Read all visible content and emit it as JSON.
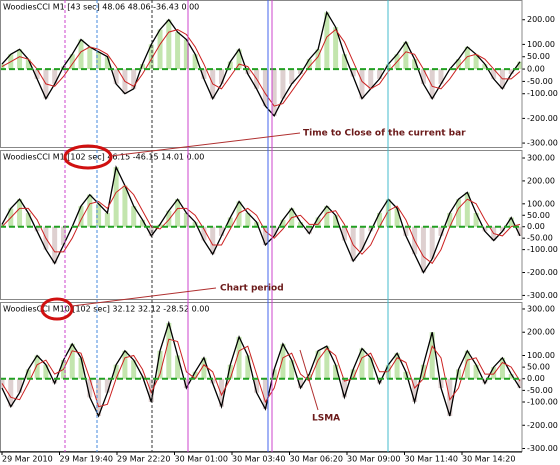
{
  "chart_data": [
    {
      "type": "line",
      "title": "WoodiesCCI M1 [43 sec] 48.06 48.06 -36.43 0.00",
      "ylim": [
        -320,
        280
      ],
      "yticks": [
        {
          "value": 200,
          "label": "200.00"
        },
        {
          "value": 100,
          "label": "100.00"
        },
        {
          "value": 50,
          "label": "50.00"
        },
        {
          "value": 0,
          "label": "0.00"
        },
        {
          "value": -50,
          "label": "-50.00"
        },
        {
          "value": -100,
          "label": "-100.00"
        },
        {
          "value": -200,
          "label": "-200.00"
        },
        {
          "value": -300,
          "label": "-300.00"
        }
      ],
      "series": [
        {
          "color": "#000000",
          "values": [
            20,
            60,
            80,
            40,
            -40,
            -120,
            -60,
            10,
            60,
            120,
            90,
            70,
            50,
            -60,
            -100,
            -80,
            20,
            100,
            160,
            200,
            150,
            120,
            60,
            -40,
            -120,
            -60,
            30,
            80,
            -20,
            -80,
            -150,
            -190,
            -120,
            -60,
            -20,
            40,
            80,
            230,
            170,
            60,
            -30,
            -120,
            -80,
            -40,
            20,
            60,
            110,
            40,
            -60,
            -120,
            -60,
            0,
            40,
            90,
            60,
            20,
            -40,
            -80,
            -20,
            30
          ]
        },
        {
          "color": "#cc2222",
          "values": [
            10,
            30,
            50,
            40,
            0,
            -60,
            -70,
            -30,
            20,
            70,
            90,
            80,
            60,
            10,
            -50,
            -70,
            -20,
            40,
            100,
            150,
            160,
            140,
            90,
            20,
            -60,
            -80,
            -30,
            20,
            10,
            -40,
            -100,
            -150,
            -140,
            -90,
            -40,
            10,
            50,
            130,
            160,
            110,
            30,
            -50,
            -80,
            -60,
            -10,
            30,
            70,
            60,
            0,
            -70,
            -80,
            -40,
            10,
            50,
            60,
            40,
            0,
            -40,
            -40,
            -10
          ]
        }
      ],
      "annotations": [
        "Time to Close of the current bar"
      ]
    },
    {
      "type": "line",
      "title": "WoodiesCCI M1 [102 sec] 46.15 -46.15 14.01 0.00",
      "ylim": [
        -320,
        335
      ],
      "yticks": [
        {
          "value": 300,
          "label": "300.00"
        },
        {
          "value": 200,
          "label": "200.00"
        },
        {
          "value": 100,
          "label": "100.00"
        },
        {
          "value": 50,
          "label": "50.00"
        },
        {
          "value": 0,
          "label": "0.00"
        },
        {
          "value": -50,
          "label": "-50.00"
        },
        {
          "value": -100,
          "label": "-100.00"
        },
        {
          "value": -200,
          "label": "-200.00"
        },
        {
          "value": -300,
          "label": "-300.00"
        }
      ],
      "series": [
        {
          "color": "#000000",
          "values": [
            10,
            80,
            120,
            60,
            -20,
            -100,
            -160,
            -80,
            0,
            90,
            140,
            100,
            60,
            260,
            180,
            90,
            30,
            -40,
            10,
            70,
            120,
            60,
            20,
            -60,
            -120,
            -40,
            40,
            110,
            60,
            20,
            -80,
            -40,
            30,
            80,
            20,
            -30,
            40,
            90,
            50,
            -60,
            -150,
            -100,
            -20,
            60,
            120,
            80,
            -40,
            -120,
            -200,
            -140,
            -40,
            60,
            120,
            150,
            60,
            -20,
            -60,
            -20,
            40,
            -40
          ]
        },
        {
          "color": "#cc2222",
          "values": [
            0,
            40,
            80,
            80,
            30,
            -50,
            -110,
            -110,
            -50,
            30,
            100,
            110,
            80,
            150,
            180,
            140,
            70,
            0,
            -10,
            30,
            80,
            80,
            50,
            -10,
            -80,
            -80,
            -10,
            60,
            80,
            50,
            -20,
            -50,
            -10,
            40,
            50,
            10,
            10,
            60,
            70,
            10,
            -80,
            -120,
            -80,
            0,
            70,
            90,
            30,
            -60,
            -130,
            -160,
            -100,
            0,
            80,
            120,
            100,
            30,
            -30,
            -40,
            0,
            10
          ]
        }
      ],
      "annotations": [
        "Chart period"
      ]
    },
    {
      "type": "line",
      "title": "WoodiesCCI M10 [102 sec] 32.12 32.12 -28.52 0.00",
      "ylim": [
        -315,
        330
      ],
      "yticks": [
        {
          "value": 300,
          "label": "300.00"
        },
        {
          "value": 200,
          "label": "200.00"
        },
        {
          "value": 100,
          "label": "100.00"
        },
        {
          "value": 50,
          "label": "50.00"
        },
        {
          "value": 0,
          "label": "0.00"
        },
        {
          "value": -50,
          "label": "-50.00"
        },
        {
          "value": -100,
          "label": "-100.00"
        },
        {
          "value": -200,
          "label": "-200.00"
        },
        {
          "value": -300,
          "label": "-300.00"
        }
      ],
      "series": [
        {
          "color": "#000000",
          "values": [
            -40,
            -120,
            -60,
            40,
            100,
            60,
            -20,
            80,
            150,
            90,
            -80,
            -160,
            -60,
            60,
            120,
            80,
            10,
            -100,
            120,
            240,
            100,
            -40,
            30,
            90,
            -20,
            -120,
            60,
            180,
            100,
            -60,
            -130,
            40,
            150,
            80,
            -40,
            20,
            120,
            140,
            60,
            -80,
            40,
            130,
            90,
            -20,
            60,
            110,
            30,
            -100,
            60,
            200,
            -40,
            -160,
            40,
            120,
            60,
            -20,
            50,
            90,
            20,
            -40
          ]
        },
        {
          "color": "#cc2222",
          "values": [
            -20,
            -80,
            -90,
            -20,
            60,
            80,
            20,
            40,
            120,
            110,
            0,
            -120,
            -110,
            0,
            90,
            100,
            40,
            -60,
            20,
            170,
            160,
            30,
            0,
            60,
            30,
            -70,
            0,
            120,
            140,
            20,
            -100,
            -40,
            90,
            110,
            20,
            -10,
            80,
            130,
            100,
            -10,
            0,
            90,
            110,
            30,
            30,
            90,
            70,
            -40,
            0,
            140,
            90,
            -90,
            -40,
            80,
            90,
            20,
            20,
            70,
            50,
            -10
          ]
        }
      ],
      "annotations": [
        "LSMA"
      ]
    }
  ],
  "time_axis": [
    "29 Mar 2010",
    "29 Mar 19:40",
    "29 Mar 22:20",
    "30 Mar 01:00",
    "30 Mar 03:40",
    "30 Mar 06:20",
    "30 Mar 09:00",
    "30 Mar 11:40",
    "30 Mar 14:20"
  ]
}
